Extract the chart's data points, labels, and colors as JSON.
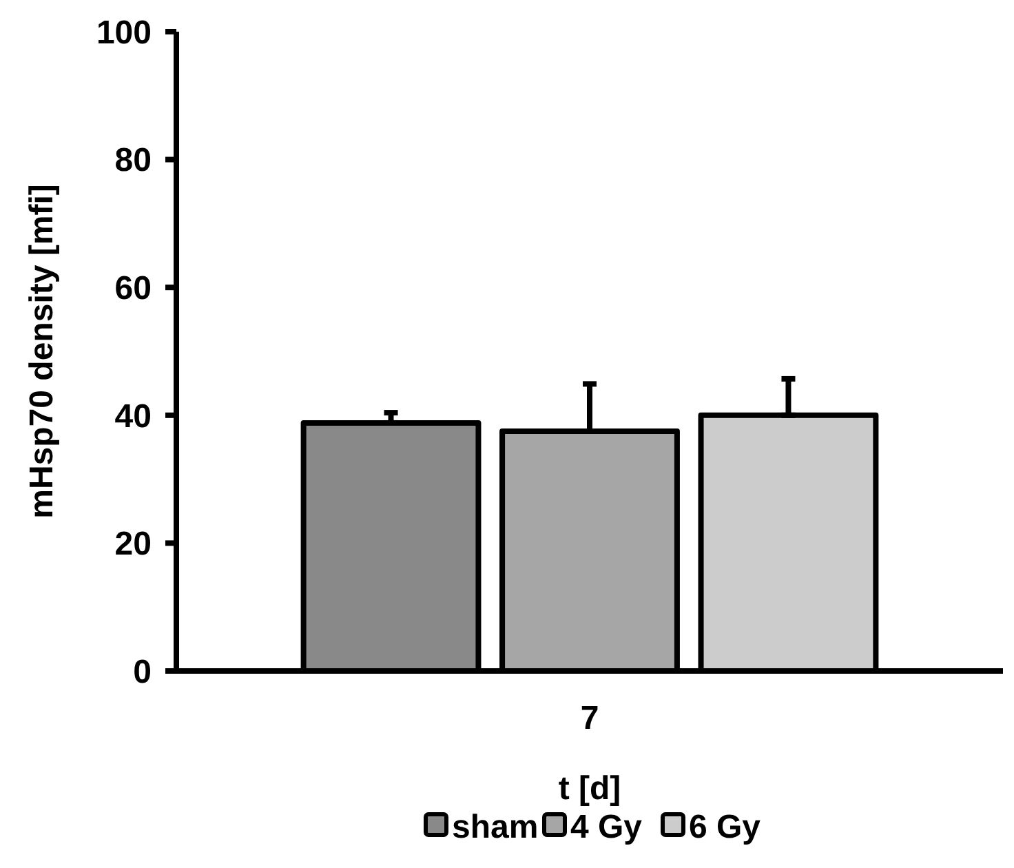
{
  "chart_data": {
    "type": "bar",
    "xlabel": "t [d]",
    "ylabel": "mHsp70 density [mfi]",
    "categories": [
      "7"
    ],
    "series": [
      {
        "name": "sham",
        "color": "#898989",
        "values": [
          38.8
        ],
        "errors": [
          [
            38.8,
            40.4
          ]
        ]
      },
      {
        "name": "4 Gy",
        "color": "#a6a6a6",
        "values": [
          37.5
        ],
        "errors": [
          [
            37.5,
            44.9
          ]
        ]
      },
      {
        "name": "6 Gy",
        "color": "#cccccc",
        "values": [
          40.0
        ],
        "errors": [
          [
            40.0,
            45.7
          ]
        ]
      }
    ],
    "ylim": [
      0,
      100
    ],
    "yticks": [
      0,
      20,
      40,
      60,
      80,
      100
    ],
    "legend": "bottom"
  }
}
